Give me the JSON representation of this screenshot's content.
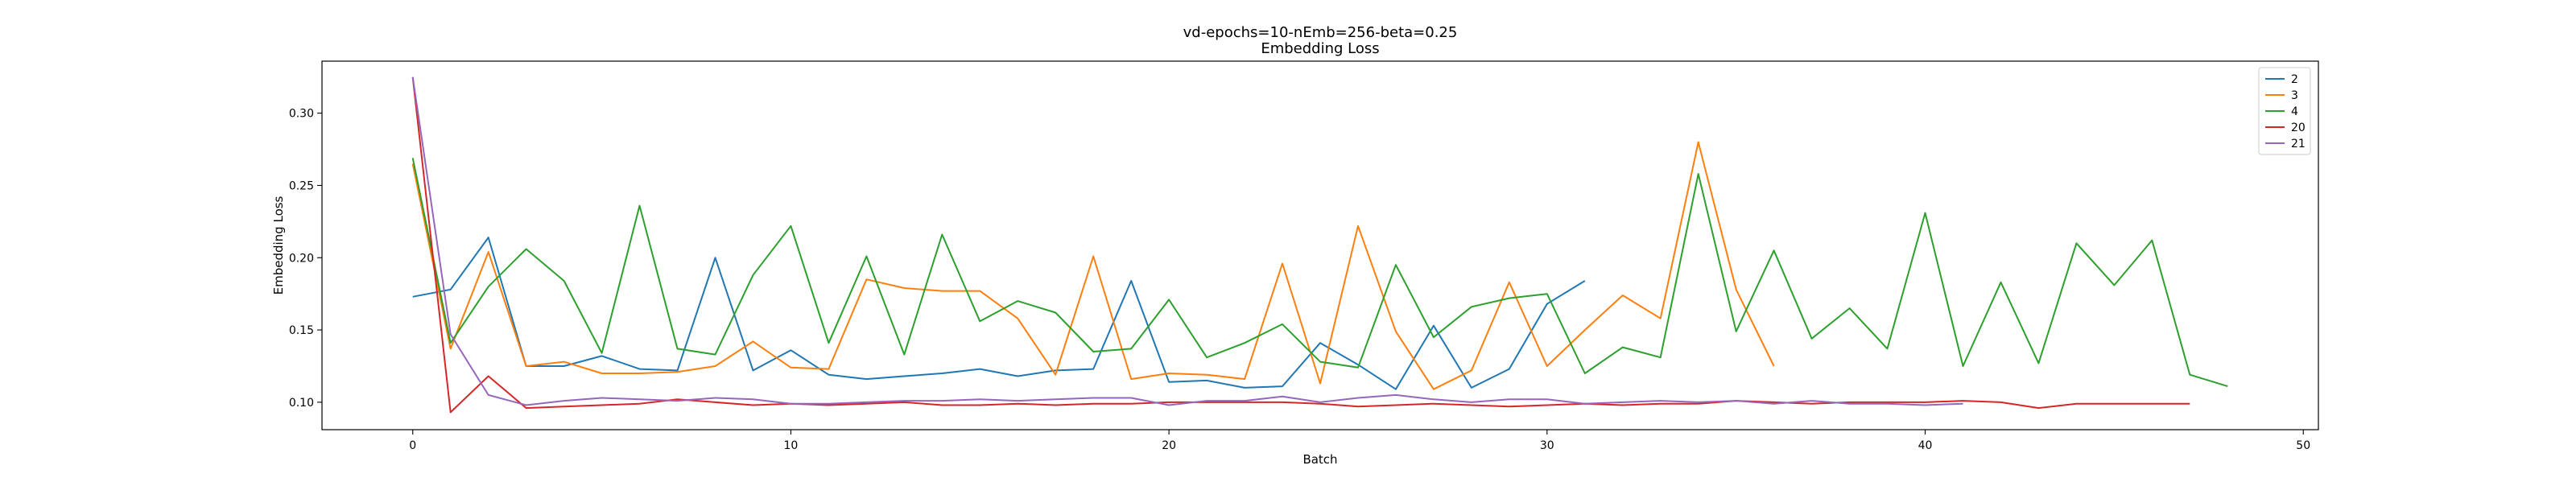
{
  "chart_data": {
    "type": "line",
    "title": "vd-epochs=10-nEmb=256-beta=0.25",
    "subtitle": "Embedding Loss",
    "xlabel": "Batch",
    "ylabel": "Embedding Loss",
    "xlim": [
      -2.4,
      50.4
    ],
    "ylim": [
      0.081,
      0.336
    ],
    "xticks": [
      0,
      10,
      20,
      30,
      40,
      50
    ],
    "yticks": [
      0.1,
      0.15,
      0.2,
      0.25,
      0.3
    ],
    "xtick_labels": [
      "0",
      "10",
      "20",
      "30",
      "40",
      "50"
    ],
    "ytick_labels": [
      "0.10",
      "0.15",
      "0.20",
      "0.25",
      "0.30"
    ],
    "grid": false,
    "legend_position": "top-right",
    "series": [
      {
        "name": "2",
        "color": "#1f77b4",
        "values": [
          0.173,
          0.178,
          0.214,
          0.125,
          0.125,
          0.132,
          0.123,
          0.122,
          0.2,
          0.122,
          0.136,
          0.119,
          0.116,
          0.118,
          0.12,
          0.123,
          0.118,
          0.122,
          0.123,
          0.184,
          0.114,
          0.115,
          0.11,
          0.111,
          0.141,
          0.126,
          0.109,
          0.153,
          0.11,
          0.123,
          0.168,
          0.184
        ]
      },
      {
        "name": "3",
        "color": "#ff7f0e",
        "values": [
          0.265,
          0.137,
          0.204,
          0.125,
          0.128,
          0.12,
          0.12,
          0.121,
          0.125,
          0.142,
          0.124,
          0.123,
          0.185,
          0.179,
          0.177,
          0.177,
          0.158,
          0.119,
          0.201,
          0.116,
          0.12,
          0.119,
          0.116,
          0.196,
          0.113,
          0.222,
          0.149,
          0.109,
          0.122,
          0.183,
          0.125,
          0.15,
          0.174,
          0.158,
          0.28,
          0.178,
          0.125
        ]
      },
      {
        "name": "4",
        "color": "#2ca02c",
        "values": [
          0.269,
          0.141,
          0.18,
          0.206,
          0.184,
          0.134,
          0.236,
          0.137,
          0.133,
          0.188,
          0.222,
          0.141,
          0.201,
          0.133,
          0.216,
          0.156,
          0.17,
          0.162,
          0.135,
          0.137,
          0.171,
          0.131,
          0.141,
          0.154,
          0.128,
          0.124,
          0.195,
          0.145,
          0.166,
          0.172,
          0.175,
          0.12,
          0.138,
          0.131,
          0.258,
          0.149,
          0.205,
          0.144,
          0.165,
          0.137,
          0.231,
          0.125,
          0.183,
          0.127,
          0.21,
          0.181,
          0.212,
          0.119,
          0.111
        ]
      },
      {
        "name": "20",
        "color": "#d62728",
        "values": [
          0.325,
          0.093,
          0.118,
          0.096,
          0.097,
          0.098,
          0.099,
          0.102,
          0.1,
          0.098,
          0.099,
          0.098,
          0.099,
          0.1,
          0.098,
          0.098,
          0.099,
          0.098,
          0.099,
          0.099,
          0.1,
          0.1,
          0.1,
          0.1,
          0.099,
          0.097,
          0.098,
          0.099,
          0.098,
          0.097,
          0.098,
          0.099,
          0.098,
          0.099,
          0.099,
          0.101,
          0.1,
          0.099,
          0.1,
          0.1,
          0.1,
          0.101,
          0.1,
          0.096,
          0.099,
          0.099,
          0.099,
          0.099
        ]
      },
      {
        "name": "21",
        "color": "#9467bd",
        "values": [
          0.325,
          0.147,
          0.105,
          0.098,
          0.101,
          0.103,
          0.102,
          0.101,
          0.103,
          0.102,
          0.099,
          0.099,
          0.1,
          0.101,
          0.101,
          0.102,
          0.101,
          0.102,
          0.103,
          0.103,
          0.098,
          0.101,
          0.101,
          0.104,
          0.1,
          0.103,
          0.105,
          0.102,
          0.1,
          0.102,
          0.102,
          0.099,
          0.1,
          0.101,
          0.1,
          0.101,
          0.099,
          0.101,
          0.099,
          0.099,
          0.098,
          0.099
        ]
      }
    ]
  }
}
